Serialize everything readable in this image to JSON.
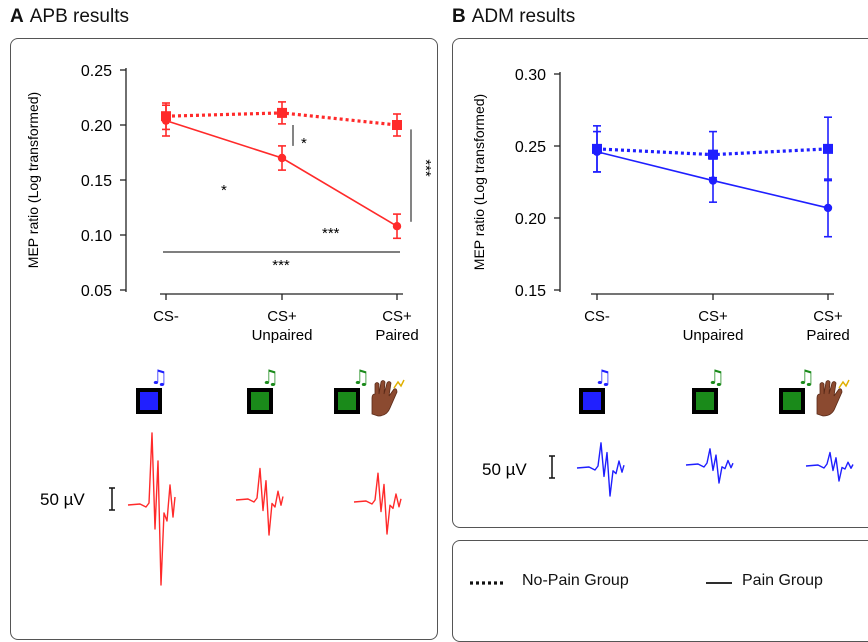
{
  "panel_a": {
    "letter": "A",
    "title": "APB results"
  },
  "panel_b": {
    "letter": "B",
    "title": "ADM results"
  },
  "legend": {
    "no_pain": "No-Pain Group",
    "pain": "Pain Group"
  },
  "scale_label": "50 µV",
  "colors": {
    "apb": "#ff2a2a",
    "adm": "#1f1fff",
    "stim_blue": "#2020ff",
    "stim_green": "#1a8a1a",
    "hand": "#8b4a30"
  },
  "icons": [
    "blue-square-tone-icon",
    "green-square-tone-icon",
    "green-square-tone-hand-pain-icon"
  ],
  "chart_data": [
    {
      "type": "line",
      "title": "APB results",
      "ylabel": "MEP ratio (Log transformed)",
      "categories": [
        "CS-",
        "CS+\nUnpaired",
        "CS+\nPaired"
      ],
      "yticks": [
        "0.05",
        "0.10",
        "0.15",
        "0.20",
        "0.25"
      ],
      "ylim": [
        0.05,
        0.25
      ],
      "series": [
        {
          "name": "No-Pain Group",
          "style": "dotted",
          "values": [
            0.208,
            0.211,
            0.2
          ],
          "errors": [
            0.012,
            0.01,
            0.01
          ]
        },
        {
          "name": "Pain Group",
          "style": "solid",
          "values": [
            0.204,
            0.17,
            0.108
          ],
          "errors": [
            0.014,
            0.011,
            0.011
          ]
        }
      ],
      "significance": [
        {
          "label": "*",
          "between": "CS+ Unpaired No-Pain vs Pain"
        },
        {
          "label": "*",
          "between": "CS- vs CS+ Unpaired (Pain)"
        },
        {
          "label": "***",
          "between": "CS+ Unpaired vs CS+ Paired (Pain)"
        },
        {
          "label": "***",
          "between": "CS- vs CS+ Paired (Pain)"
        },
        {
          "label": "***",
          "between": "CS+ Paired No-Pain vs Pain"
        }
      ]
    },
    {
      "type": "line",
      "title": "ADM results",
      "ylabel": "MEP ratio (Log transformed)",
      "categories": [
        "CS-",
        "CS+\nUnpaired",
        "CS+\nPaired"
      ],
      "yticks": [
        "0.15",
        "0.20",
        "0.25",
        "0.30"
      ],
      "ylim": [
        0.15,
        0.3
      ],
      "series": [
        {
          "name": "No-Pain Group",
          "style": "dotted",
          "values": [
            0.248,
            0.244,
            0.248
          ],
          "errors": [
            0.016,
            0.016,
            0.022
          ]
        },
        {
          "name": "Pain Group",
          "style": "solid",
          "values": [
            0.246,
            0.226,
            0.207
          ],
          "errors": [
            0.014,
            0.015,
            0.02
          ]
        }
      ]
    }
  ]
}
